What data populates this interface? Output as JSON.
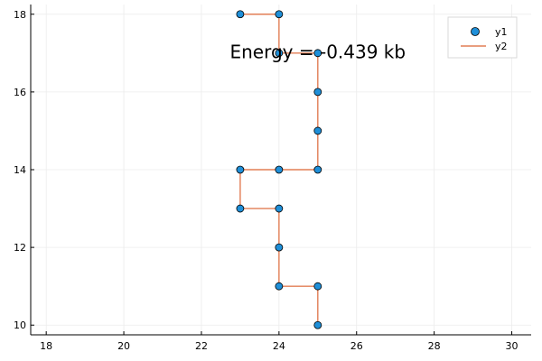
{
  "chart_data": {
    "type": "scatter",
    "xlim": [
      17.6,
      30.5
    ],
    "ylim": [
      9.75,
      18.25
    ],
    "xticks": [
      18,
      20,
      22,
      24,
      26,
      28,
      30
    ],
    "yticks": [
      10,
      12,
      14,
      16,
      18
    ],
    "x_tick_labels": [
      "18",
      "20",
      "22",
      "24",
      "26",
      "28",
      "30"
    ],
    "y_tick_labels": [
      "10",
      "12",
      "14",
      "16",
      "18"
    ],
    "grid": true,
    "legend_position": "top-right",
    "annotation": {
      "text": "Energy = -0.439 kb",
      "x": 25,
      "y": 17
    },
    "series": [
      {
        "name": "y1",
        "kind": "scatter",
        "color": "#1f8fd8",
        "x": [
          25,
          25,
          24,
          24,
          24,
          23,
          23,
          24,
          25,
          25,
          25,
          25,
          24,
          24,
          23
        ],
        "y": [
          10,
          11,
          11,
          12,
          13,
          13,
          14,
          14,
          14,
          15,
          16,
          17,
          17,
          18,
          18
        ]
      },
      {
        "name": "y2",
        "kind": "line",
        "color": "#e27e55",
        "x": [
          25,
          25,
          24,
          24,
          24,
          23,
          23,
          24,
          25,
          25,
          25,
          25,
          24,
          24,
          23
        ],
        "y": [
          10,
          11,
          11,
          12,
          13,
          13,
          14,
          14,
          14,
          15,
          16,
          17,
          17,
          18,
          18
        ]
      }
    ]
  }
}
